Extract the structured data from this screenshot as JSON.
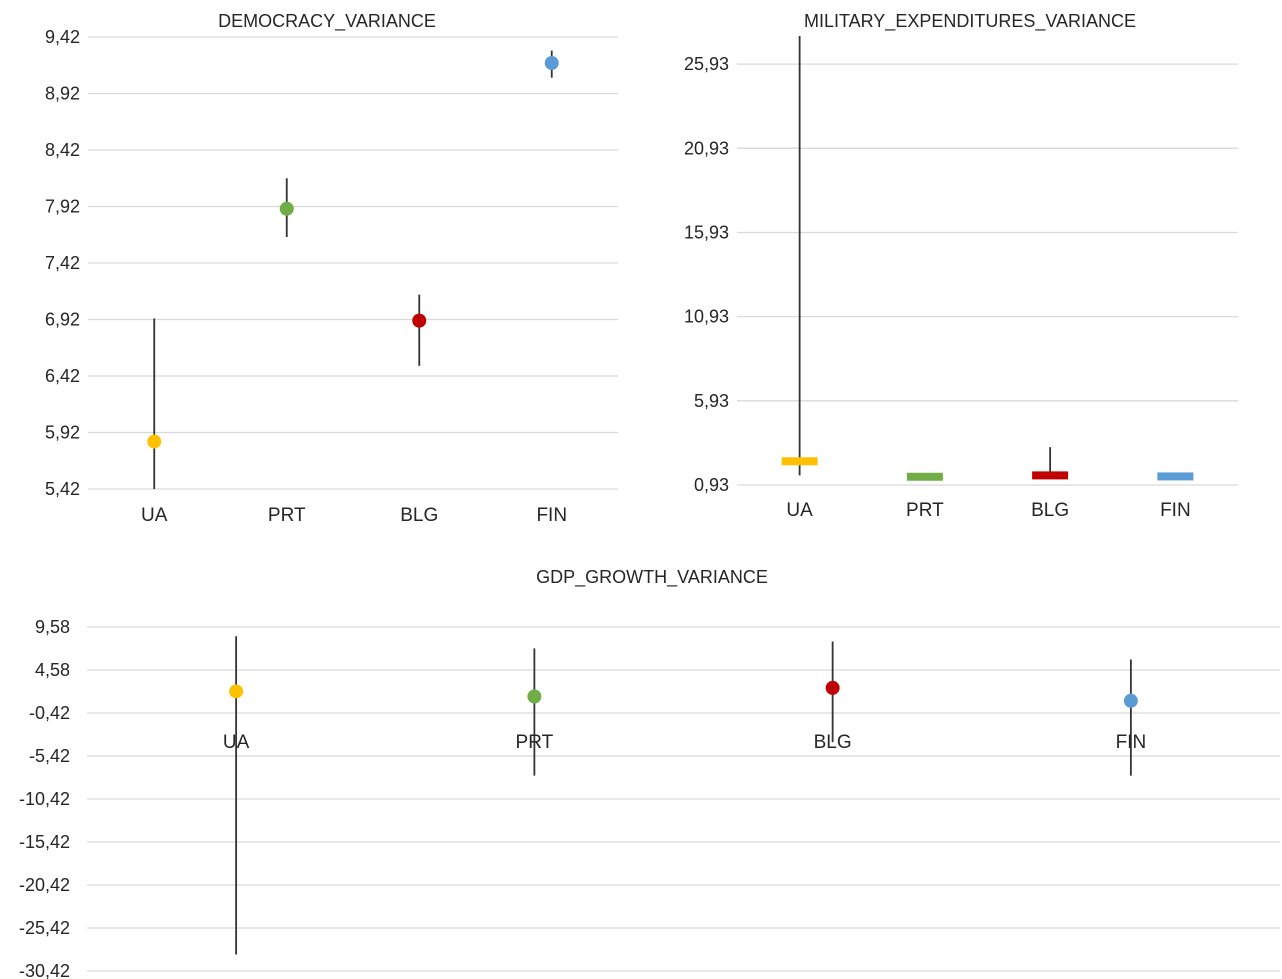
{
  "colors": {
    "UA": "#ffc000",
    "PRT": "#70ad47",
    "BLG": "#c00000",
    "FIN": "#5b9bd5",
    "grid": "#d9d9d9",
    "whisker": "#333333"
  },
  "chart_data": [
    {
      "id": "democracy",
      "type": "scatter",
      "marker": "circle",
      "title": "DEMOCRACY_VARIANCE",
      "categories": [
        "UA",
        "PRT",
        "BLG",
        "FIN"
      ],
      "values": [
        5.84,
        7.9,
        6.91,
        9.19
      ],
      "low": [
        5.42,
        7.65,
        6.51,
        9.06
      ],
      "high": [
        6.93,
        8.17,
        7.14,
        9.3
      ],
      "yticks": [
        "5,42",
        "5,92",
        "6,42",
        "6,92",
        "7,42",
        "7,92",
        "8,42",
        "8,92",
        "9,42"
      ],
      "ylim": [
        5.42,
        9.42
      ],
      "grid": true
    },
    {
      "id": "military",
      "type": "scatter",
      "marker": "dash",
      "title": "MILITARY_EXPENDITURES_VARIANCE",
      "categories": [
        "UA",
        "PRT",
        "BLG",
        "FIN"
      ],
      "values": [
        2.34,
        1.42,
        1.5,
        1.44
      ],
      "low": [
        1.5,
        1.35,
        1.34,
        1.38
      ],
      "high": [
        27.6,
        1.5,
        3.18,
        1.6
      ],
      "yticks": [
        "0,93",
        "5,93",
        "10,93",
        "15,93",
        "20,93",
        "25,93"
      ],
      "ylim": [
        0.93,
        27.6
      ],
      "grid": true
    },
    {
      "id": "gdp",
      "type": "scatter",
      "marker": "circle",
      "title": "GDP_GROWTH_VARIANCE",
      "categories": [
        "UA",
        "PRT",
        "BLG",
        "FIN"
      ],
      "values": [
        2.1,
        1.5,
        2.5,
        1.0
      ],
      "low": [
        -28.5,
        -7.7,
        -3.8,
        -7.7
      ],
      "high": [
        8.5,
        7.1,
        7.9,
        5.8
      ],
      "yticks": [
        "-30,42",
        "-25,42",
        "-20,42",
        "-15,42",
        "-10,42",
        "-5,42",
        "-0,42",
        "4,58",
        "9,58"
      ],
      "ylim": [
        -30.42,
        9.58
      ],
      "grid": true
    }
  ]
}
